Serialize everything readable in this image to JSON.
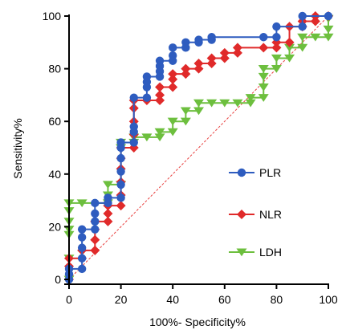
{
  "chart_data": {
    "type": "line",
    "title": "",
    "xlabel": "100%- Specificity%",
    "ylabel": "Sensitivity%",
    "xlim": [
      0,
      100
    ],
    "ylim": [
      0,
      100
    ],
    "xticks": [
      "0",
      "20",
      "40",
      "60",
      "80",
      "100"
    ],
    "yticks": [
      "0",
      "20",
      "40",
      "60",
      "80",
      "100"
    ],
    "grid": false,
    "legend_position": "right",
    "reference_line": {
      "from": [
        0,
        0
      ],
      "to": [
        100,
        100
      ],
      "color": "#e8403f",
      "style": "dashed"
    },
    "series": [
      {
        "name": "PLR",
        "color": "#2e5cbf",
        "marker": "circle",
        "points": [
          [
            0,
            0
          ],
          [
            0,
            2
          ],
          [
            0,
            4
          ],
          [
            5,
            4
          ],
          [
            5,
            8
          ],
          [
            5,
            12
          ],
          [
            5,
            16
          ],
          [
            5,
            19
          ],
          [
            10,
            19
          ],
          [
            10,
            22
          ],
          [
            10,
            25
          ],
          [
            10,
            29
          ],
          [
            15,
            29
          ],
          [
            15,
            31
          ],
          [
            20,
            31
          ],
          [
            20,
            36
          ],
          [
            20,
            41
          ],
          [
            20,
            46
          ],
          [
            20,
            50
          ],
          [
            20,
            52
          ],
          [
            25,
            52
          ],
          [
            25,
            56
          ],
          [
            25,
            58
          ],
          [
            25,
            69
          ],
          [
            30,
            69
          ],
          [
            30,
            73
          ],
          [
            30,
            75
          ],
          [
            30,
            77
          ],
          [
            35,
            77
          ],
          [
            35,
            79
          ],
          [
            35,
            81
          ],
          [
            35,
            83
          ],
          [
            40,
            83
          ],
          [
            40,
            85
          ],
          [
            40,
            88
          ],
          [
            45,
            88
          ],
          [
            45,
            90
          ],
          [
            50,
            90
          ],
          [
            50,
            91
          ],
          [
            55,
            91
          ],
          [
            55,
            92
          ],
          [
            75,
            92
          ],
          [
            80,
            92
          ],
          [
            80,
            96
          ],
          [
            90,
            96
          ],
          [
            90,
            100
          ],
          [
            100,
            100
          ]
        ]
      },
      {
        "name": "NLR",
        "color": "#e02a2a",
        "marker": "diamond",
        "points": [
          [
            0,
            0
          ],
          [
            0,
            5
          ],
          [
            0,
            8
          ],
          [
            5,
            8
          ],
          [
            5,
            11
          ],
          [
            10,
            11
          ],
          [
            10,
            15
          ],
          [
            10,
            19
          ],
          [
            10,
            22
          ],
          [
            15,
            22
          ],
          [
            15,
            25
          ],
          [
            15,
            28
          ],
          [
            20,
            28
          ],
          [
            20,
            32
          ],
          [
            20,
            37
          ],
          [
            20,
            42
          ],
          [
            20,
            46
          ],
          [
            20,
            50
          ],
          [
            25,
            50
          ],
          [
            25,
            55
          ],
          [
            25,
            60
          ],
          [
            25,
            65
          ],
          [
            25,
            68
          ],
          [
            30,
            68
          ],
          [
            35,
            68
          ],
          [
            35,
            70
          ],
          [
            35,
            73
          ],
          [
            40,
            73
          ],
          [
            40,
            76
          ],
          [
            40,
            78
          ],
          [
            45,
            78
          ],
          [
            45,
            80
          ],
          [
            50,
            80
          ],
          [
            50,
            82
          ],
          [
            55,
            82
          ],
          [
            55,
            84
          ],
          [
            60,
            84
          ],
          [
            60,
            86
          ],
          [
            65,
            86
          ],
          [
            65,
            88
          ],
          [
            75,
            88
          ],
          [
            80,
            88
          ],
          [
            80,
            90
          ],
          [
            85,
            90
          ],
          [
            85,
            96
          ],
          [
            90,
            96
          ],
          [
            90,
            98
          ],
          [
            95,
            98
          ],
          [
            95,
            100
          ],
          [
            100,
            100
          ]
        ]
      },
      {
        "name": "LDH",
        "color": "#6dbf3e",
        "marker": "triangle-down",
        "points": [
          [
            0,
            0
          ],
          [
            0,
            8
          ],
          [
            0,
            17
          ],
          [
            0,
            19
          ],
          [
            0,
            22
          ],
          [
            0,
            26
          ],
          [
            0,
            29
          ],
          [
            5,
            29
          ],
          [
            15,
            29
          ],
          [
            15,
            32
          ],
          [
            15,
            36
          ],
          [
            20,
            36
          ],
          [
            20,
            50
          ],
          [
            20,
            52
          ],
          [
            25,
            52
          ],
          [
            25,
            54
          ],
          [
            30,
            54
          ],
          [
            35,
            54
          ],
          [
            35,
            56
          ],
          [
            40,
            56
          ],
          [
            40,
            60
          ],
          [
            45,
            60
          ],
          [
            45,
            64
          ],
          [
            50,
            64
          ],
          [
            50,
            67
          ],
          [
            55,
            67
          ],
          [
            60,
            67
          ],
          [
            65,
            67
          ],
          [
            70,
            67
          ],
          [
            70,
            69
          ],
          [
            75,
            69
          ],
          [
            75,
            73
          ],
          [
            75,
            77
          ],
          [
            75,
            80
          ],
          [
            80,
            80
          ],
          [
            80,
            84
          ],
          [
            85,
            84
          ],
          [
            85,
            88
          ],
          [
            90,
            88
          ],
          [
            90,
            92
          ],
          [
            95,
            92
          ],
          [
            100,
            92
          ],
          [
            100,
            95
          ],
          [
            100,
            99
          ]
        ]
      }
    ]
  }
}
